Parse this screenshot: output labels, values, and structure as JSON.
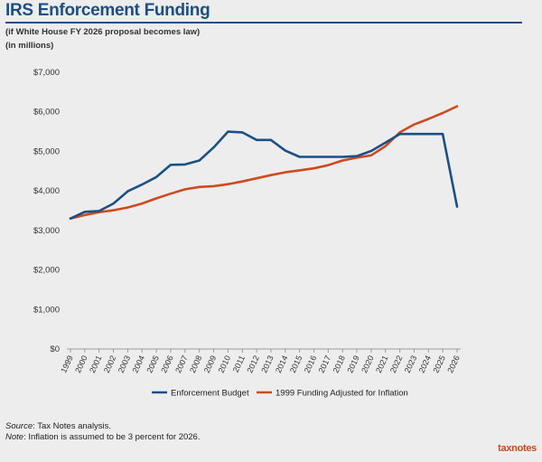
{
  "header": {
    "title": "IRS Enforcement Funding",
    "subtitle": "(if White House FY 2026 proposal becomes law)",
    "units": "(in millions)"
  },
  "footer": {
    "source_label": "Source",
    "source_text": ": Tax Notes analysis.",
    "note_label": "Note",
    "note_text": ": Inflation is assumed to be 3 percent for 2026.",
    "logo": "taxnotes"
  },
  "colors": {
    "enforcement": "#1c4f85",
    "inflation": "#cf4a1f",
    "title": "#1c4f85",
    "axis": "#9a9a9a"
  },
  "chart_data": {
    "type": "line",
    "title": "IRS Enforcement Funding",
    "xlabel": "",
    "ylabel": "(in millions)",
    "ylim": [
      0,
      7000
    ],
    "y_ticks": [
      0,
      1000,
      2000,
      3000,
      4000,
      5000,
      6000,
      7000
    ],
    "y_tick_labels": [
      "$0",
      "$1,000",
      "$2,000",
      "$3,000",
      "$4,000",
      "$5,000",
      "$6,000",
      "$7,000"
    ],
    "grid": false,
    "legend": "bottom",
    "x": [
      "1999",
      "2000",
      "2001",
      "2002",
      "2003",
      "2004",
      "2005",
      "2006",
      "2007",
      "2008",
      "2009",
      "2010",
      "2011",
      "2012",
      "2013",
      "2014",
      "2015",
      "2016",
      "2017",
      "2018",
      "2019",
      "2020",
      "2021",
      "2022",
      "2023",
      "2024",
      "2025",
      "2026"
    ],
    "series": [
      {
        "name": "Enforcement Budget",
        "color": "#1c4f85",
        "values": [
          3300,
          3470,
          3490,
          3680,
          3990,
          4160,
          4350,
          4660,
          4670,
          4770,
          5100,
          5500,
          5480,
          5290,
          5290,
          5020,
          4860,
          4860,
          4860,
          4860,
          4880,
          5010,
          5220,
          5440,
          5440,
          5440,
          5440,
          3600
        ]
      },
      {
        "name": "1999 Funding Adjusted for Inflation",
        "color": "#cf4a1f",
        "values": [
          3300,
          3390,
          3460,
          3510,
          3580,
          3680,
          3810,
          3930,
          4040,
          4100,
          4120,
          4170,
          4240,
          4320,
          4400,
          4470,
          4520,
          4570,
          4650,
          4770,
          4840,
          4900,
          5130,
          5480,
          5680,
          5820,
          5970,
          6140
        ]
      }
    ]
  }
}
